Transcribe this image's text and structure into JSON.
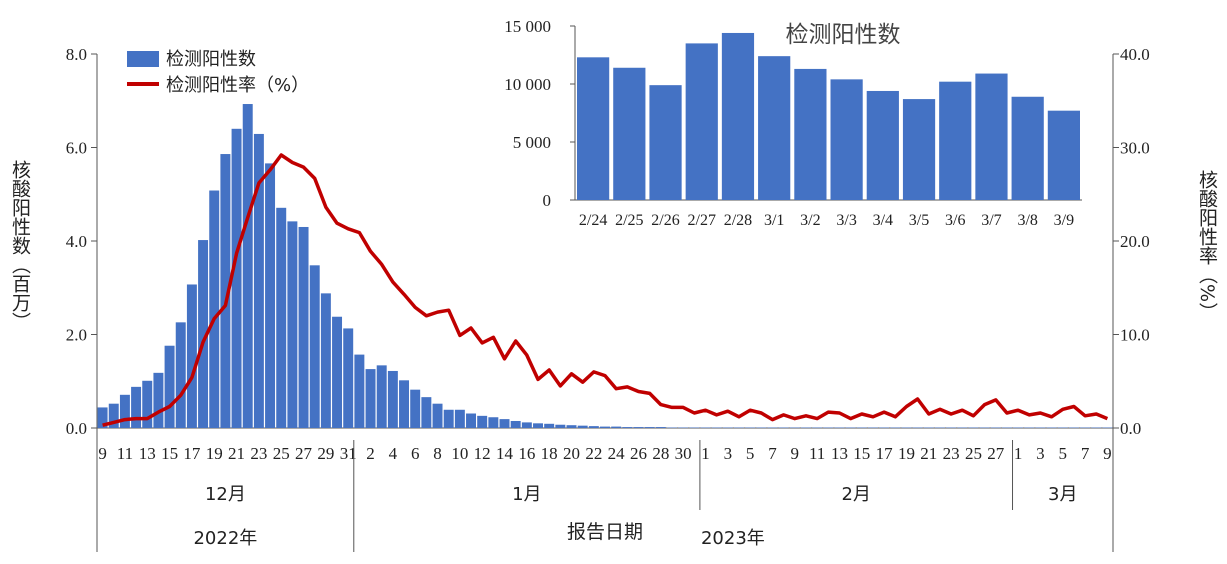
{
  "chart_data": [
    {
      "type": "bar+line",
      "series": [
        {
          "name": "检测阳性数",
          "type": "bar",
          "axis": "left",
          "color": "#4472C4",
          "values": [
            0.44,
            0.52,
            0.71,
            0.88,
            1.01,
            1.18,
            1.76,
            2.26,
            3.07,
            4.02,
            5.08,
            5.86,
            6.4,
            6.93,
            6.29,
            5.66,
            4.71,
            4.42,
            4.3,
            3.48,
            2.88,
            2.38,
            2.13,
            1.57,
            1.26,
            1.34,
            1.22,
            1.02,
            0.82,
            0.66,
            0.52,
            0.39,
            0.39,
            0.31,
            0.26,
            0.23,
            0.19,
            0.15,
            0.12,
            0.1,
            0.09,
            0.07,
            0.06,
            0.05,
            0.04,
            0.03,
            0.03,
            0.02,
            0.02,
            0.02,
            0.02,
            0.01,
            0.01,
            0.01,
            0.01,
            0.01,
            0.01,
            0.01,
            0.01,
            0.01,
            0.01,
            0.01,
            0.01,
            0.01,
            0.01,
            0.01,
            0.01,
            0.01,
            0.01,
            0.01,
            0.01,
            0.01,
            0.01,
            0.01,
            0.01,
            0.01,
            0.01,
            0.01,
            0.01,
            0.01,
            0.01,
            0.01,
            0.01,
            0.01,
            0.01,
            0.01,
            0.01,
            0.01,
            0.01,
            0.01,
            0.01
          ]
        },
        {
          "name": "检测阳性率（%）",
          "type": "line",
          "axis": "right",
          "color": "#C00000",
          "values": [
            0.3,
            0.6,
            0.9,
            1.0,
            1.0,
            1.7,
            2.3,
            3.5,
            5.4,
            9.2,
            11.7,
            13.1,
            18.7,
            22.5,
            26.2,
            27.6,
            29.2,
            28.4,
            27.9,
            26.7,
            23.6,
            21.9,
            21.3,
            20.9,
            18.9,
            17.5,
            15.6,
            14.3,
            12.9,
            12.0,
            12.4,
            12.6,
            9.9,
            10.7,
            9.1,
            9.7,
            7.4,
            9.3,
            7.8,
            5.2,
            6.2,
            4.5,
            5.8,
            4.9,
            6.0,
            5.6,
            4.2,
            4.4,
            3.9,
            3.7,
            2.5,
            2.2,
            2.2,
            1.6,
            1.9,
            1.4,
            1.8,
            1.2,
            1.9,
            1.6,
            0.9,
            1.4,
            1.0,
            1.3,
            1.0,
            1.7,
            1.6,
            1.0,
            1.5,
            1.2,
            1.7,
            1.2,
            2.3,
            3.1,
            1.5,
            2.0,
            1.5,
            1.9,
            1.3,
            2.5,
            3.0,
            1.6,
            1.9,
            1.4,
            1.6,
            1.2,
            2.0,
            2.3,
            1.3,
            1.5,
            1.0
          ]
        }
      ],
      "ylabel_left": "核酸阳性数（百万）",
      "ylabel_right": "核酸阳性率（%）",
      "xlabel": "报告日期",
      "ylim_left": [
        0,
        8
      ],
      "ylim_right": [
        0,
        40
      ],
      "yticks_left": [
        "0.0",
        "2.0",
        "4.0",
        "6.0",
        "8.0"
      ],
      "yticks_right": [
        "0.0",
        "10.0",
        "20.0",
        "30.0",
        "40.0"
      ],
      "day_labels": [
        "9",
        "11",
        "13",
        "15",
        "17",
        "19",
        "21",
        "23",
        "25",
        "27",
        "29",
        "31",
        "2",
        "4",
        "6",
        "8",
        "10",
        "12",
        "14",
        "16",
        "18",
        "20",
        "22",
        "24",
        "26",
        "28",
        "30",
        "1",
        "3",
        "5",
        "7",
        "9",
        "11",
        "13",
        "15",
        "17",
        "19",
        "21",
        "23",
        "25",
        "27",
        "1",
        "3",
        "5",
        "7",
        "9"
      ],
      "months": [
        "12月",
        "1月",
        "2月",
        "3月"
      ],
      "years": [
        "2022年",
        "2023年"
      ],
      "legend": {
        "placement": "top-left",
        "entries": [
          "检测阳性数",
          "检测阳性率（%）"
        ]
      }
    },
    {
      "type": "bar",
      "title": "检测阳性数",
      "categories": [
        "2/24",
        "2/25",
        "2/26",
        "2/27",
        "2/28",
        "3/1",
        "3/2",
        "3/3",
        "3/4",
        "3/5",
        "3/6",
        "3/7",
        "3/8",
        "3/9"
      ],
      "values": [
        12300,
        11400,
        9900,
        13500,
        14400,
        12400,
        11300,
        10400,
        9400,
        8700,
        10200,
        10900,
        8900,
        7700
      ],
      "ylim": [
        0,
        15000
      ],
      "yticks": [
        "0",
        "5 000",
        "10 000",
        "15 000"
      ],
      "color": "#4472C4"
    }
  ]
}
